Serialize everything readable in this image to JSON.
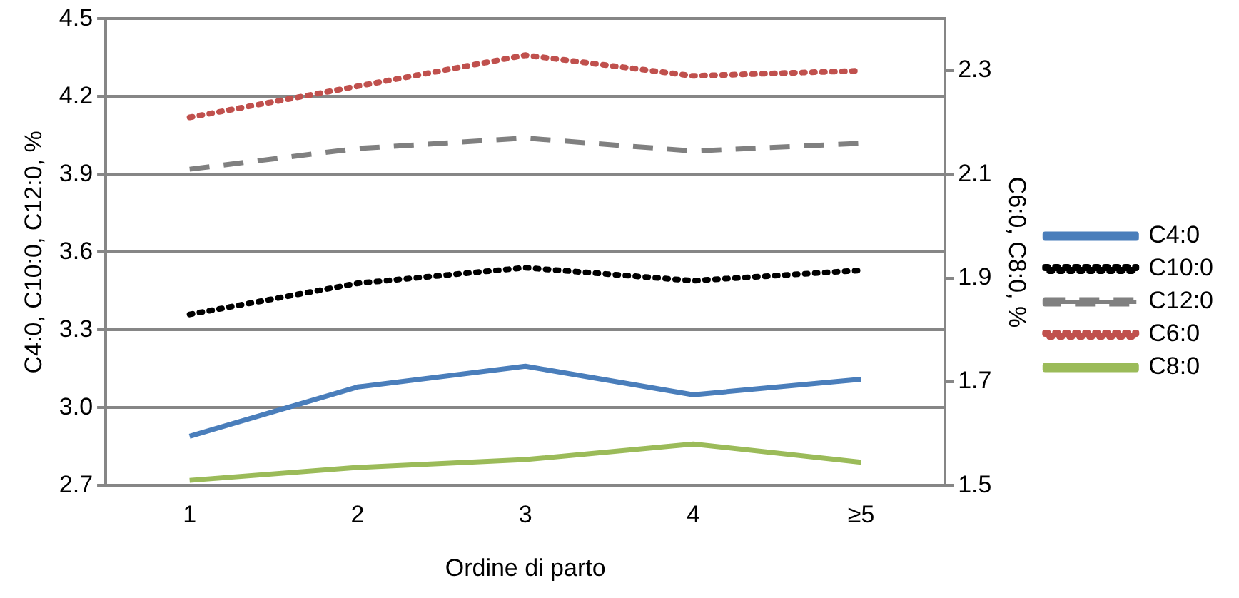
{
  "chart_data": {
    "type": "line",
    "xlabel": "Ordine di parto",
    "ylabel": "C4:0, C10:0, C12:0, %",
    "y2label": "C6:0, C8:0, %",
    "categories": [
      "1",
      "2",
      "3",
      "4",
      "≥5"
    ],
    "series": [
      {
        "name": "C4:0",
        "color": "#4a7ebb",
        "values": [
          2.89,
          3.08,
          3.16,
          3.05,
          3.11
        ],
        "line_style": "solid"
      },
      {
        "name": "C10:0",
        "color": "#000000",
        "values": [
          3.36,
          3.48,
          3.54,
          3.49,
          3.53
        ],
        "line_style": "dotted"
      },
      {
        "name": "C12:0",
        "color": "#808080",
        "values": [
          3.92,
          4.0,
          4.04,
          3.99,
          4.02
        ],
        "line_style": "dashed"
      },
      {
        "name": "C6:0",
        "color": "#c0504d",
        "values": [
          2.21,
          2.27,
          2.33,
          2.29,
          2.3
        ],
        "line_style": "dotted",
        "axis": "y2"
      },
      {
        "name": "C8:0",
        "color": "#9bbb59",
        "values": [
          1.51,
          1.535,
          1.55,
          1.58,
          1.545
        ],
        "line_style": "solid",
        "axis": "y2"
      }
    ],
    "ylim": [
      2.7,
      4.5
    ],
    "yticks": [
      {
        "value": 2.7,
        "label": "2.7"
      },
      {
        "value": 3.0,
        "label": "3.0"
      },
      {
        "value": 3.3,
        "label": "3.3"
      },
      {
        "value": 3.6,
        "label": "3.6"
      },
      {
        "value": 3.9,
        "label": "3.9"
      },
      {
        "value": 4.2,
        "label": "4.2"
      },
      {
        "value": 4.5,
        "label": "4.5"
      }
    ],
    "y2lim": [
      1.5,
      2.4
    ],
    "y2ticks": [
      {
        "value": 1.5,
        "label": "1.5"
      },
      {
        "value": 1.7,
        "label": "1.7"
      },
      {
        "value": 1.9,
        "label": "1.9"
      },
      {
        "value": 2.1,
        "label": "2.1"
      },
      {
        "value": 2.3,
        "label": "2.3"
      }
    ],
    "grid": "y",
    "legend": "right",
    "marker": "none"
  }
}
